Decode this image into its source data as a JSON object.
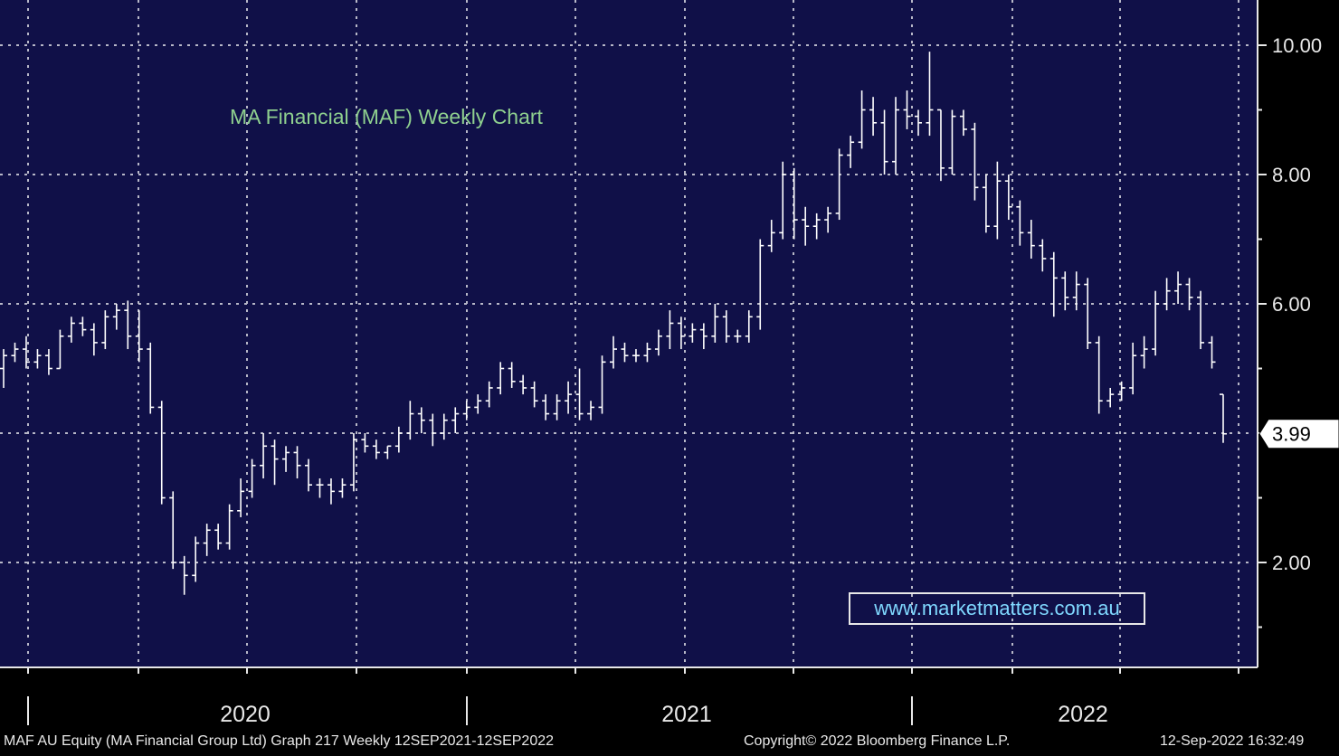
{
  "footer": {
    "security": "MAF AU Equity (MA Financial Group Ltd) Graph 217  Weekly 12SEP2021-12SEP2022",
    "copyright": "Copyright© 2022 Bloomberg Finance L.P.",
    "timestamp": "12-Sep-2022 16:32:49"
  },
  "colors": {
    "plot_background": "#101048",
    "outer_background": "#000000",
    "grid": "#b8b8c8",
    "bars": "#ffffff",
    "title": "#8fd08f",
    "watermark": "#7fd8ff"
  },
  "chart_data": {
    "type": "ohlc",
    "title": "MA Financial (MAF) Weekly Chart",
    "watermark": "www.marketmatters.com.au",
    "xlabel": "",
    "ylabel": "",
    "y_ticks": [
      "2.00",
      "4.00",
      "6.00",
      "8.00",
      "10.00"
    ],
    "y_tick_values": [
      2,
      4,
      6,
      8,
      10
    ],
    "ylim": [
      0.8,
      11.0
    ],
    "year_labels": [
      "2020",
      "2021",
      "2022"
    ],
    "last_price_label": "3.99",
    "last_price": 3.99,
    "grid": true,
    "axis_position": "right",
    "series": [
      {
        "values": [
          [
            5.0,
            5.3,
            4.7,
            5.2
          ],
          [
            5.2,
            5.4,
            5.1,
            5.3
          ],
          [
            5.3,
            5.5,
            5.0,
            5.1
          ],
          [
            5.1,
            5.3,
            5.0,
            5.2
          ],
          [
            5.2,
            5.3,
            4.9,
            5.0
          ],
          [
            5.0,
            5.6,
            5.0,
            5.5
          ],
          [
            5.5,
            5.8,
            5.4,
            5.7
          ],
          [
            5.7,
            5.8,
            5.5,
            5.6
          ],
          [
            5.6,
            5.7,
            5.2,
            5.4
          ],
          [
            5.4,
            5.9,
            5.3,
            5.8
          ],
          [
            5.8,
            6.0,
            5.6,
            5.9
          ],
          [
            5.9,
            6.05,
            5.3,
            5.5
          ],
          [
            5.5,
            5.9,
            5.1,
            5.3
          ],
          [
            5.3,
            5.4,
            4.3,
            4.4
          ],
          [
            4.4,
            4.5,
            2.9,
            3.0
          ],
          [
            3.0,
            3.1,
            1.9,
            2.0
          ],
          [
            2.0,
            2.1,
            1.5,
            1.8
          ],
          [
            1.8,
            2.4,
            1.7,
            2.3
          ],
          [
            2.3,
            2.6,
            2.1,
            2.5
          ],
          [
            2.5,
            2.6,
            2.2,
            2.3
          ],
          [
            2.3,
            2.9,
            2.2,
            2.8
          ],
          [
            2.8,
            3.3,
            2.7,
            3.1
          ],
          [
            3.1,
            3.6,
            3.0,
            3.5
          ],
          [
            3.5,
            4.0,
            3.3,
            3.8
          ],
          [
            3.8,
            3.9,
            3.2,
            3.6
          ],
          [
            3.6,
            3.8,
            3.4,
            3.7
          ],
          [
            3.7,
            3.8,
            3.3,
            3.5
          ],
          [
            3.5,
            3.6,
            3.1,
            3.2
          ],
          [
            3.2,
            3.3,
            3.0,
            3.2
          ],
          [
            3.2,
            3.3,
            2.9,
            3.1
          ],
          [
            3.1,
            3.3,
            3.0,
            3.2
          ],
          [
            3.2,
            4.0,
            3.1,
            3.9
          ],
          [
            3.9,
            4.0,
            3.7,
            3.8
          ],
          [
            3.8,
            3.9,
            3.6,
            3.7
          ],
          [
            3.7,
            3.8,
            3.6,
            3.8
          ],
          [
            3.8,
            4.1,
            3.7,
            4.0
          ],
          [
            4.0,
            4.5,
            3.9,
            4.3
          ],
          [
            4.3,
            4.4,
            4.0,
            4.2
          ],
          [
            4.2,
            4.3,
            3.8,
            4.0
          ],
          [
            4.0,
            4.3,
            3.9,
            4.2
          ],
          [
            4.2,
            4.4,
            4.0,
            4.3
          ],
          [
            4.3,
            4.5,
            4.2,
            4.4
          ],
          [
            4.4,
            4.6,
            4.3,
            4.5
          ],
          [
            4.5,
            4.8,
            4.4,
            4.7
          ],
          [
            4.7,
            5.1,
            4.6,
            5.0
          ],
          [
            5.0,
            5.1,
            4.7,
            4.8
          ],
          [
            4.8,
            4.9,
            4.6,
            4.7
          ],
          [
            4.7,
            4.8,
            4.4,
            4.5
          ],
          [
            4.5,
            4.6,
            4.2,
            4.3
          ],
          [
            4.3,
            4.6,
            4.2,
            4.5
          ],
          [
            4.5,
            4.8,
            4.3,
            4.6
          ],
          [
            4.6,
            5.0,
            4.2,
            4.3
          ],
          [
            4.3,
            4.5,
            4.2,
            4.4
          ],
          [
            4.4,
            5.2,
            4.3,
            5.1
          ],
          [
            5.1,
            5.5,
            5.0,
            5.3
          ],
          [
            5.3,
            5.4,
            5.1,
            5.2
          ],
          [
            5.2,
            5.3,
            5.1,
            5.2
          ],
          [
            5.2,
            5.4,
            5.1,
            5.3
          ],
          [
            5.3,
            5.6,
            5.2,
            5.5
          ],
          [
            5.5,
            5.9,
            5.3,
            5.7
          ],
          [
            5.7,
            5.8,
            5.3,
            5.5
          ],
          [
            5.5,
            5.7,
            5.4,
            5.6
          ],
          [
            5.6,
            5.7,
            5.3,
            5.5
          ],
          [
            5.5,
            6.0,
            5.4,
            5.8
          ],
          [
            5.8,
            5.9,
            5.4,
            5.5
          ],
          [
            5.5,
            5.6,
            5.4,
            5.5
          ],
          [
            5.5,
            5.9,
            5.4,
            5.8
          ],
          [
            5.8,
            7.0,
            5.6,
            6.9
          ],
          [
            6.9,
            7.3,
            6.8,
            7.1
          ],
          [
            7.1,
            8.2,
            7.0,
            8.0
          ],
          [
            8.0,
            8.1,
            7.0,
            7.3
          ],
          [
            7.3,
            7.5,
            6.9,
            7.2
          ],
          [
            7.2,
            7.4,
            7.0,
            7.3
          ],
          [
            7.3,
            7.5,
            7.1,
            7.4
          ],
          [
            7.4,
            8.4,
            7.3,
            8.3
          ],
          [
            8.3,
            8.6,
            8.1,
            8.5
          ],
          [
            8.5,
            9.3,
            8.4,
            9.0
          ],
          [
            9.0,
            9.2,
            8.6,
            8.8
          ],
          [
            8.8,
            9.0,
            8.0,
            8.2
          ],
          [
            8.2,
            9.2,
            8.0,
            9.0
          ],
          [
            9.0,
            9.3,
            8.7,
            8.9
          ],
          [
            8.9,
            9.0,
            8.6,
            8.8
          ],
          [
            8.8,
            9.9,
            8.6,
            9.0
          ],
          [
            9.0,
            9.0,
            7.9,
            8.1
          ],
          [
            8.1,
            9.0,
            8.0,
            8.9
          ],
          [
            8.9,
            9.0,
            8.6,
            8.7
          ],
          [
            8.7,
            8.8,
            7.6,
            7.8
          ],
          [
            7.8,
            8.0,
            7.1,
            7.2
          ],
          [
            7.2,
            8.2,
            7.0,
            7.9
          ],
          [
            7.9,
            8.0,
            7.3,
            7.5
          ],
          [
            7.5,
            7.6,
            6.9,
            7.1
          ],
          [
            7.1,
            7.3,
            6.7,
            6.9
          ],
          [
            6.9,
            7.0,
            6.5,
            6.7
          ],
          [
            6.7,
            6.8,
            5.8,
            6.4
          ],
          [
            6.4,
            6.5,
            5.9,
            6.1
          ],
          [
            6.1,
            6.5,
            5.9,
            6.3
          ],
          [
            6.3,
            6.4,
            5.3,
            5.4
          ],
          [
            5.4,
            5.5,
            4.3,
            4.5
          ],
          [
            4.5,
            4.7,
            4.4,
            4.6
          ],
          [
            4.6,
            4.8,
            4.5,
            4.7
          ],
          [
            4.7,
            5.4,
            4.6,
            5.2
          ],
          [
            5.2,
            5.5,
            5.0,
            5.3
          ],
          [
            5.3,
            6.2,
            5.2,
            6.0
          ],
          [
            6.0,
            6.4,
            5.9,
            6.2
          ],
          [
            6.2,
            6.5,
            6.0,
            6.3
          ],
          [
            6.3,
            6.4,
            5.9,
            6.1
          ],
          [
            6.1,
            6.2,
            5.3,
            5.4
          ],
          [
            5.4,
            5.5,
            5.0,
            5.1
          ],
          [
            4.6,
            4.6,
            3.85,
            3.99
          ]
        ]
      }
    ]
  }
}
